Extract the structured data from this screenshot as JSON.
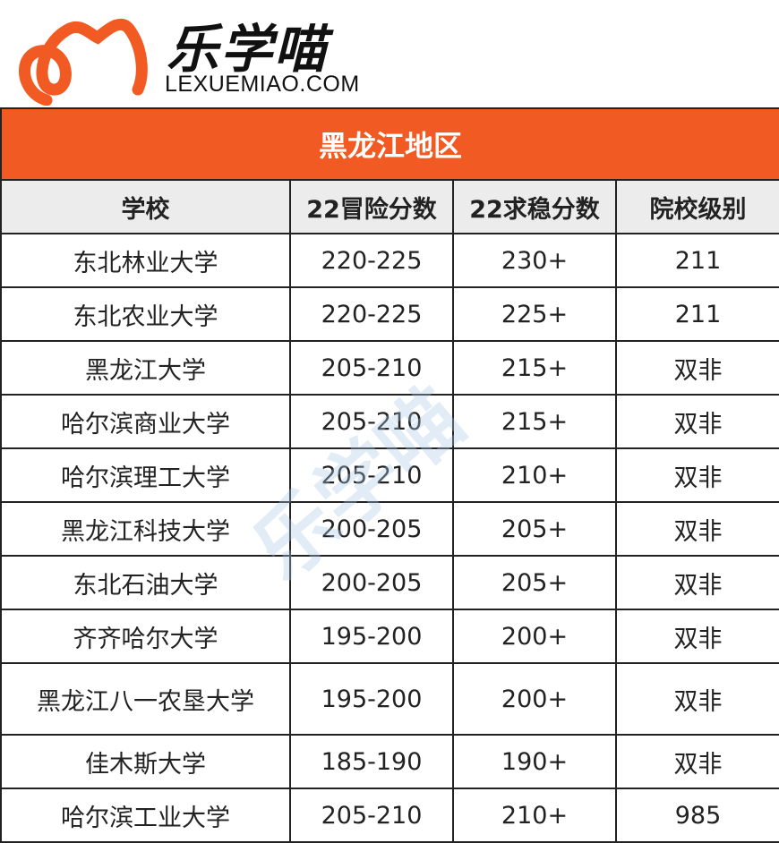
{
  "logo": {
    "brand": "乐学喵",
    "domain": "LEXUEMIAO.COM",
    "color": "#f15a22"
  },
  "table": {
    "title": "黑龙江地区",
    "headers": [
      "学校",
      "22冒险分数",
      "22求稳分数",
      "院校级别"
    ],
    "rows": [
      [
        "东北林业大学",
        "220-225",
        "230+",
        "211"
      ],
      [
        "东北农业大学",
        "220-225",
        "225+",
        "211"
      ],
      [
        "黑龙江大学",
        "205-210",
        "215+",
        "双非"
      ],
      [
        "哈尔滨商业大学",
        "205-210",
        "215+",
        "双非"
      ],
      [
        "哈尔滨理工大学",
        "205-210",
        "210+",
        "双非"
      ],
      [
        "黑龙江科技大学",
        "200-205",
        "205+",
        "双非"
      ],
      [
        "东北石油大学",
        "200-205",
        "205+",
        "双非"
      ],
      [
        "齐齐哈尔大学",
        "195-200",
        "200+",
        "双非"
      ],
      [
        "黑龙江八一农垦大学",
        "195-200",
        "200+",
        "双非"
      ],
      [
        "佳木斯大学",
        "185-190",
        "190+",
        "双非"
      ],
      [
        "哈尔滨工业大学",
        "205-210",
        "210+",
        "985"
      ]
    ],
    "header_color": "#f15a22"
  },
  "watermark": "乐学喵"
}
